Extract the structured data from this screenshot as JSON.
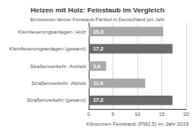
{
  "chart_data": {
    "type": "bar",
    "orientation": "horizontal",
    "title": "Heizen mit Holz: Feinstaub im Vergleich",
    "subtitle": "Emissionen kleiner Feinstaub-Partikel in Deutschland pro Jahr",
    "xlabel": "Kilotonnen Feinstaub (PM2,5) im Jahr 2019",
    "categories": [
      "Kleinfeuerungsanlagen: Holz",
      "Kleinfeuerungsanlagen (gesamt)",
      "Straßenverkehr: Antrieb",
      "Straßenverkehr: Abrieb",
      "Straßenverkehr (gesamt)"
    ],
    "values": [
      15.3,
      17.2,
      3.6,
      11.6,
      17.2
    ],
    "value_labels": [
      "15,3",
      "17,2",
      "3,6",
      "11,6",
      "17,2"
    ],
    "colors": [
      "#a8a8a8",
      "#6b6b6b",
      "#a8a8a8",
      "#a8a8a8",
      "#6b6b6b"
    ],
    "xlim": [
      0,
      20
    ],
    "xticks": [
      0,
      5,
      10,
      15,
      20
    ],
    "grid": true,
    "data_labels": true
  }
}
